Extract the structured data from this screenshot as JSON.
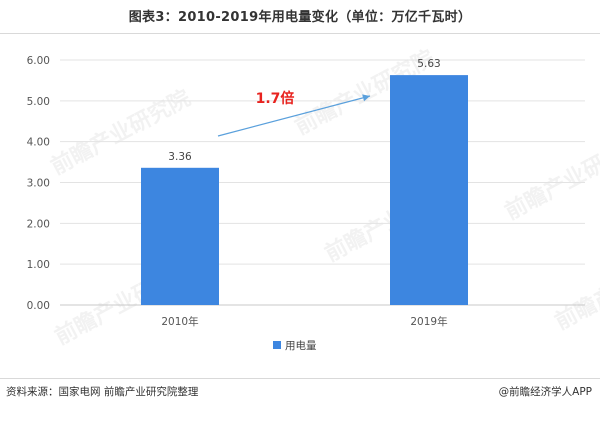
{
  "title": "图表3：2010-2019年用电量变化（单位：万亿千瓦时）",
  "source": "资料来源：国家电网  前瞻产业研究院整理",
  "brand": "@前瞻经济学人APP",
  "watermark_text": "前瞻产业研究院",
  "colors": {
    "bar": "#3d86e0",
    "arrow": "#5aa0dc",
    "annotation": "#e8231f",
    "grid": "#e3e3e3"
  },
  "chart_data": {
    "type": "bar",
    "categories": [
      "2010年",
      "2019年"
    ],
    "series": [
      {
        "name": "用电量",
        "values": [
          3.36,
          5.63
        ]
      }
    ],
    "value_labels": [
      "3.36",
      "5.63"
    ],
    "ylim": [
      0,
      6
    ],
    "yticks": [
      "0.00",
      "1.00",
      "2.00",
      "3.00",
      "4.00",
      "5.00",
      "6.00"
    ],
    "annotation": "1.7倍",
    "legend_position": "bottom",
    "grid": true
  }
}
